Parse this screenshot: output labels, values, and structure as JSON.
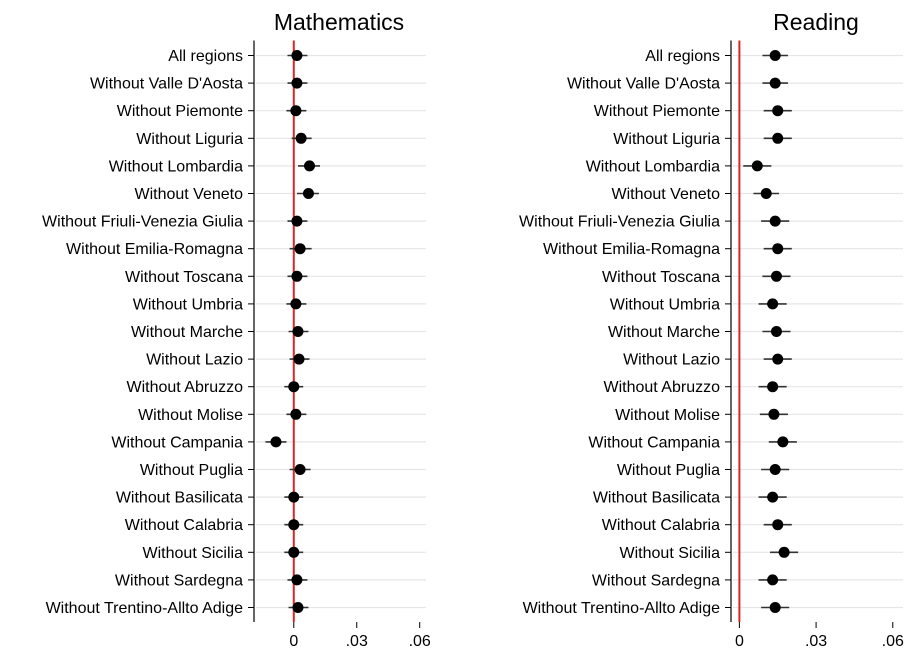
{
  "chart_data": [
    {
      "type": "scatter",
      "title": "Mathematics",
      "xlabel": "",
      "ylabel": "",
      "categories": [
        "All regions",
        "Without Valle D'Aosta",
        "Without Piemonte",
        "Without Liguria",
        "Without Lombardia",
        "Without Veneto",
        "Without Friuli-Venezia Giulia",
        "Without Emilia-Romagna",
        "Without Toscana",
        "Without Umbria",
        "Without Marche",
        "Without Lazio",
        "Without Abruzzo",
        "Without Molise",
        "Without Campania",
        "Without Puglia",
        "Without Basilicata",
        "Without Calabria",
        "Without Sicilia",
        "Without Sardegna",
        "Without Trentino-Allto Adige"
      ],
      "estimates": [
        0.0015,
        0.0015,
        0.001,
        0.0035,
        0.0075,
        0.007,
        0.0015,
        0.003,
        0.0015,
        0.001,
        0.002,
        0.0025,
        0.0,
        0.001,
        -0.0085,
        0.003,
        0.0,
        0.0,
        0.0,
        0.0015,
        0.002
      ],
      "ci_low": [
        -0.003,
        -0.003,
        -0.0035,
        -0.001,
        0.002,
        0.0015,
        -0.003,
        -0.002,
        -0.003,
        -0.0035,
        -0.0025,
        -0.002,
        -0.0045,
        -0.0035,
        -0.0135,
        -0.002,
        -0.0045,
        -0.0045,
        -0.0045,
        -0.003,
        -0.0025
      ],
      "ci_high": [
        0.0065,
        0.0065,
        0.006,
        0.0085,
        0.0125,
        0.012,
        0.0065,
        0.0085,
        0.0065,
        0.006,
        0.007,
        0.0075,
        0.0045,
        0.006,
        -0.0035,
        0.008,
        0.0045,
        0.0045,
        0.0045,
        0.0065,
        0.007
      ],
      "reference_line": 0,
      "xlim": [
        -0.018,
        0.063
      ],
      "xticks": [
        0,
        0.03,
        0.06
      ],
      "xtick_labels": [
        "0",
        ".03",
        ".06"
      ],
      "grid": true,
      "colors": {
        "reference_line": "#d62728",
        "marker": "#000000",
        "ci": "#333333",
        "grid": "#e6e6e6"
      }
    },
    {
      "type": "scatter",
      "title": "Reading",
      "xlabel": "",
      "ylabel": "",
      "categories": [
        "All regions",
        "Without Valle D'Aosta",
        "Without Piemonte",
        "Without Liguria",
        "Without Lombardia",
        "Without Veneto",
        "Without Friuli-Venezia Giulia",
        "Without Emilia-Romagna",
        "Without Toscana",
        "Without Umbria",
        "Without Marche",
        "Without Lazio",
        "Without Abruzzo",
        "Without Molise",
        "Without Campania",
        "Without Puglia",
        "Without Basilicata",
        "Without Calabria",
        "Without Sicilia",
        "Without Sardegna",
        "Without Trentino-Allto Adige"
      ],
      "estimates": [
        0.014,
        0.014,
        0.015,
        0.015,
        0.007,
        0.0105,
        0.014,
        0.015,
        0.0145,
        0.013,
        0.0145,
        0.015,
        0.013,
        0.0135,
        0.017,
        0.014,
        0.013,
        0.015,
        0.0175,
        0.013,
        0.014
      ],
      "ci_low": [
        0.009,
        0.009,
        0.0095,
        0.0095,
        0.0015,
        0.0055,
        0.0085,
        0.0095,
        0.009,
        0.0075,
        0.009,
        0.0095,
        0.0075,
        0.008,
        0.0115,
        0.0085,
        0.0075,
        0.0095,
        0.012,
        0.0075,
        0.0085
      ],
      "ci_high": [
        0.019,
        0.019,
        0.0205,
        0.0205,
        0.0125,
        0.0155,
        0.0195,
        0.0205,
        0.02,
        0.0185,
        0.02,
        0.0205,
        0.0185,
        0.019,
        0.0225,
        0.0195,
        0.0185,
        0.0205,
        0.023,
        0.0185,
        0.0195
      ],
      "reference_line": 0,
      "xlim": [
        -0.0025,
        0.064
      ],
      "xticks": [
        0,
        0.03,
        0.06
      ],
      "xtick_labels": [
        "0",
        ".03",
        ".06"
      ],
      "grid": true,
      "colors": {
        "reference_line": "#d62728",
        "marker": "#000000",
        "ci": "#333333",
        "grid": "#e6e6e6"
      }
    }
  ]
}
